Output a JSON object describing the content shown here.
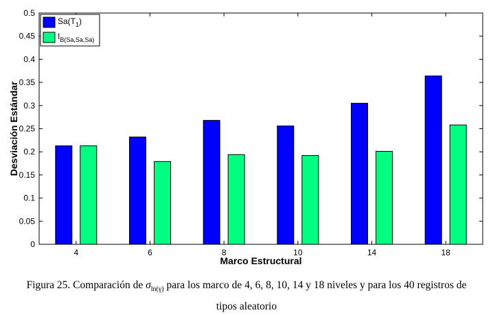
{
  "chart_data": {
    "type": "bar",
    "categories": [
      "4",
      "6",
      "8",
      "10",
      "14",
      "18"
    ],
    "series": [
      {
        "name": "Sa(T1)",
        "legend_main": "Sa(T",
        "legend_sub": "1",
        "legend_close": ")",
        "color": "#0000ff",
        "values": [
          0.213,
          0.232,
          0.268,
          0.256,
          0.305,
          0.364
        ]
      },
      {
        "name": "IB(Sa,Sa,Sa)",
        "legend_main": "I",
        "legend_sub": "B(Sa,Sa,Sa)",
        "legend_close": "",
        "color": "#00ff80",
        "values": [
          0.213,
          0.179,
          0.194,
          0.192,
          0.201,
          0.258
        ]
      }
    ],
    "xlabel": "Marco Estructural",
    "ylabel": "Desviación Estándar",
    "ylim": [
      0,
      0.5
    ],
    "yticks": [
      "0",
      "0.05",
      "0.1",
      "0.15",
      "0.2",
      "0.25",
      "0.3",
      "0.35",
      "0.4",
      "0.45",
      "0.5"
    ],
    "legend_position": "top-left",
    "grid": false
  },
  "caption": {
    "prefix": "Figura 25. Comparación de ",
    "symbol": "σ",
    "symbol_sub": "ln(γ)",
    "line1_rest": " para los marco de 4, 6, 8, 10, 14 y 18 niveles y para los 40 registros de",
    "line2": "tipos aleatorio"
  }
}
